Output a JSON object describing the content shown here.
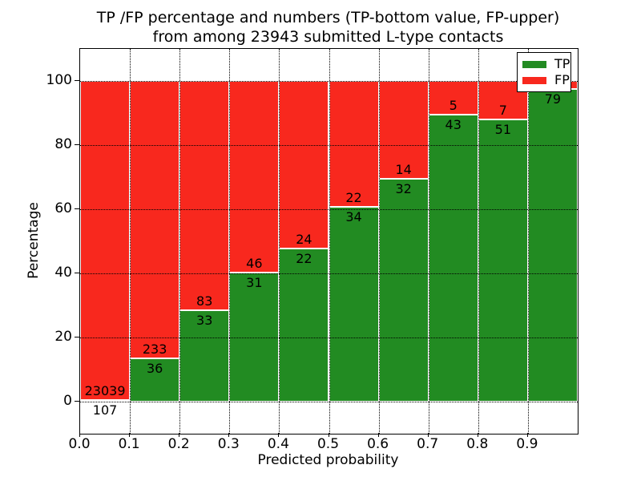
{
  "title": {
    "line1": "TP /FP percentage and numbers (TP-bottom value, FP-upper)",
    "line2": "from among 23943 submitted L-type contacts"
  },
  "chart_data": {
    "type": "bar",
    "variant": "stacked-percentage",
    "title": "TP /FP percentage and numbers (TP-bottom value, FP-upper) from among 23943 submitted L-type contacts",
    "xlabel": "Predicted probability",
    "ylabel": "Percentage",
    "xlim": [
      0.0,
      1.0
    ],
    "ylim": [
      -10,
      110
    ],
    "xtick_labels": [
      "0.0",
      "0.1",
      "0.2",
      "0.3",
      "0.4",
      "0.5",
      "0.6",
      "0.7",
      "0.8",
      "0.9"
    ],
    "ytick_values": [
      0,
      20,
      40,
      60,
      80,
      100
    ],
    "grid": "dotted",
    "total_submitted_contacts": 23943,
    "legend": {
      "position": "upper-right",
      "entries": [
        {
          "label": "TP",
          "color": "#228b22"
        },
        {
          "label": "FP",
          "color": "#f8281e"
        }
      ]
    },
    "colors": {
      "tp": "#228b22",
      "fp": "#f8281e",
      "frame": "#000000",
      "background": "#ffffff"
    },
    "bins": [
      {
        "range": [
          0.0,
          0.1
        ],
        "tp_count": 107,
        "fp_count": 23039,
        "tp_pct": 0.46
      },
      {
        "range": [
          0.1,
          0.2
        ],
        "tp_count": 36,
        "fp_count": 233,
        "tp_pct": 13.4
      },
      {
        "range": [
          0.2,
          0.3
        ],
        "tp_count": 33,
        "fp_count": 83,
        "tp_pct": 28.4
      },
      {
        "range": [
          0.3,
          0.4
        ],
        "tp_count": 31,
        "fp_count": 46,
        "tp_pct": 40.3
      },
      {
        "range": [
          0.4,
          0.5
        ],
        "tp_count": 22,
        "fp_count": 24,
        "tp_pct": 47.8
      },
      {
        "range": [
          0.5,
          0.6
        ],
        "tp_count": 34,
        "fp_count": 22,
        "tp_pct": 60.7
      },
      {
        "range": [
          0.6,
          0.7
        ],
        "tp_count": 32,
        "fp_count": 14,
        "tp_pct": 69.6
      },
      {
        "range": [
          0.7,
          0.8
        ],
        "tp_count": 43,
        "fp_count": 5,
        "tp_pct": 89.6
      },
      {
        "range": [
          0.8,
          0.9
        ],
        "tp_count": 51,
        "fp_count": 7,
        "tp_pct": 87.9
      },
      {
        "range": [
          0.9,
          1.0
        ],
        "tp_count": 79,
        "fp_count": null,
        "tp_pct": 97.5
      }
    ]
  }
}
